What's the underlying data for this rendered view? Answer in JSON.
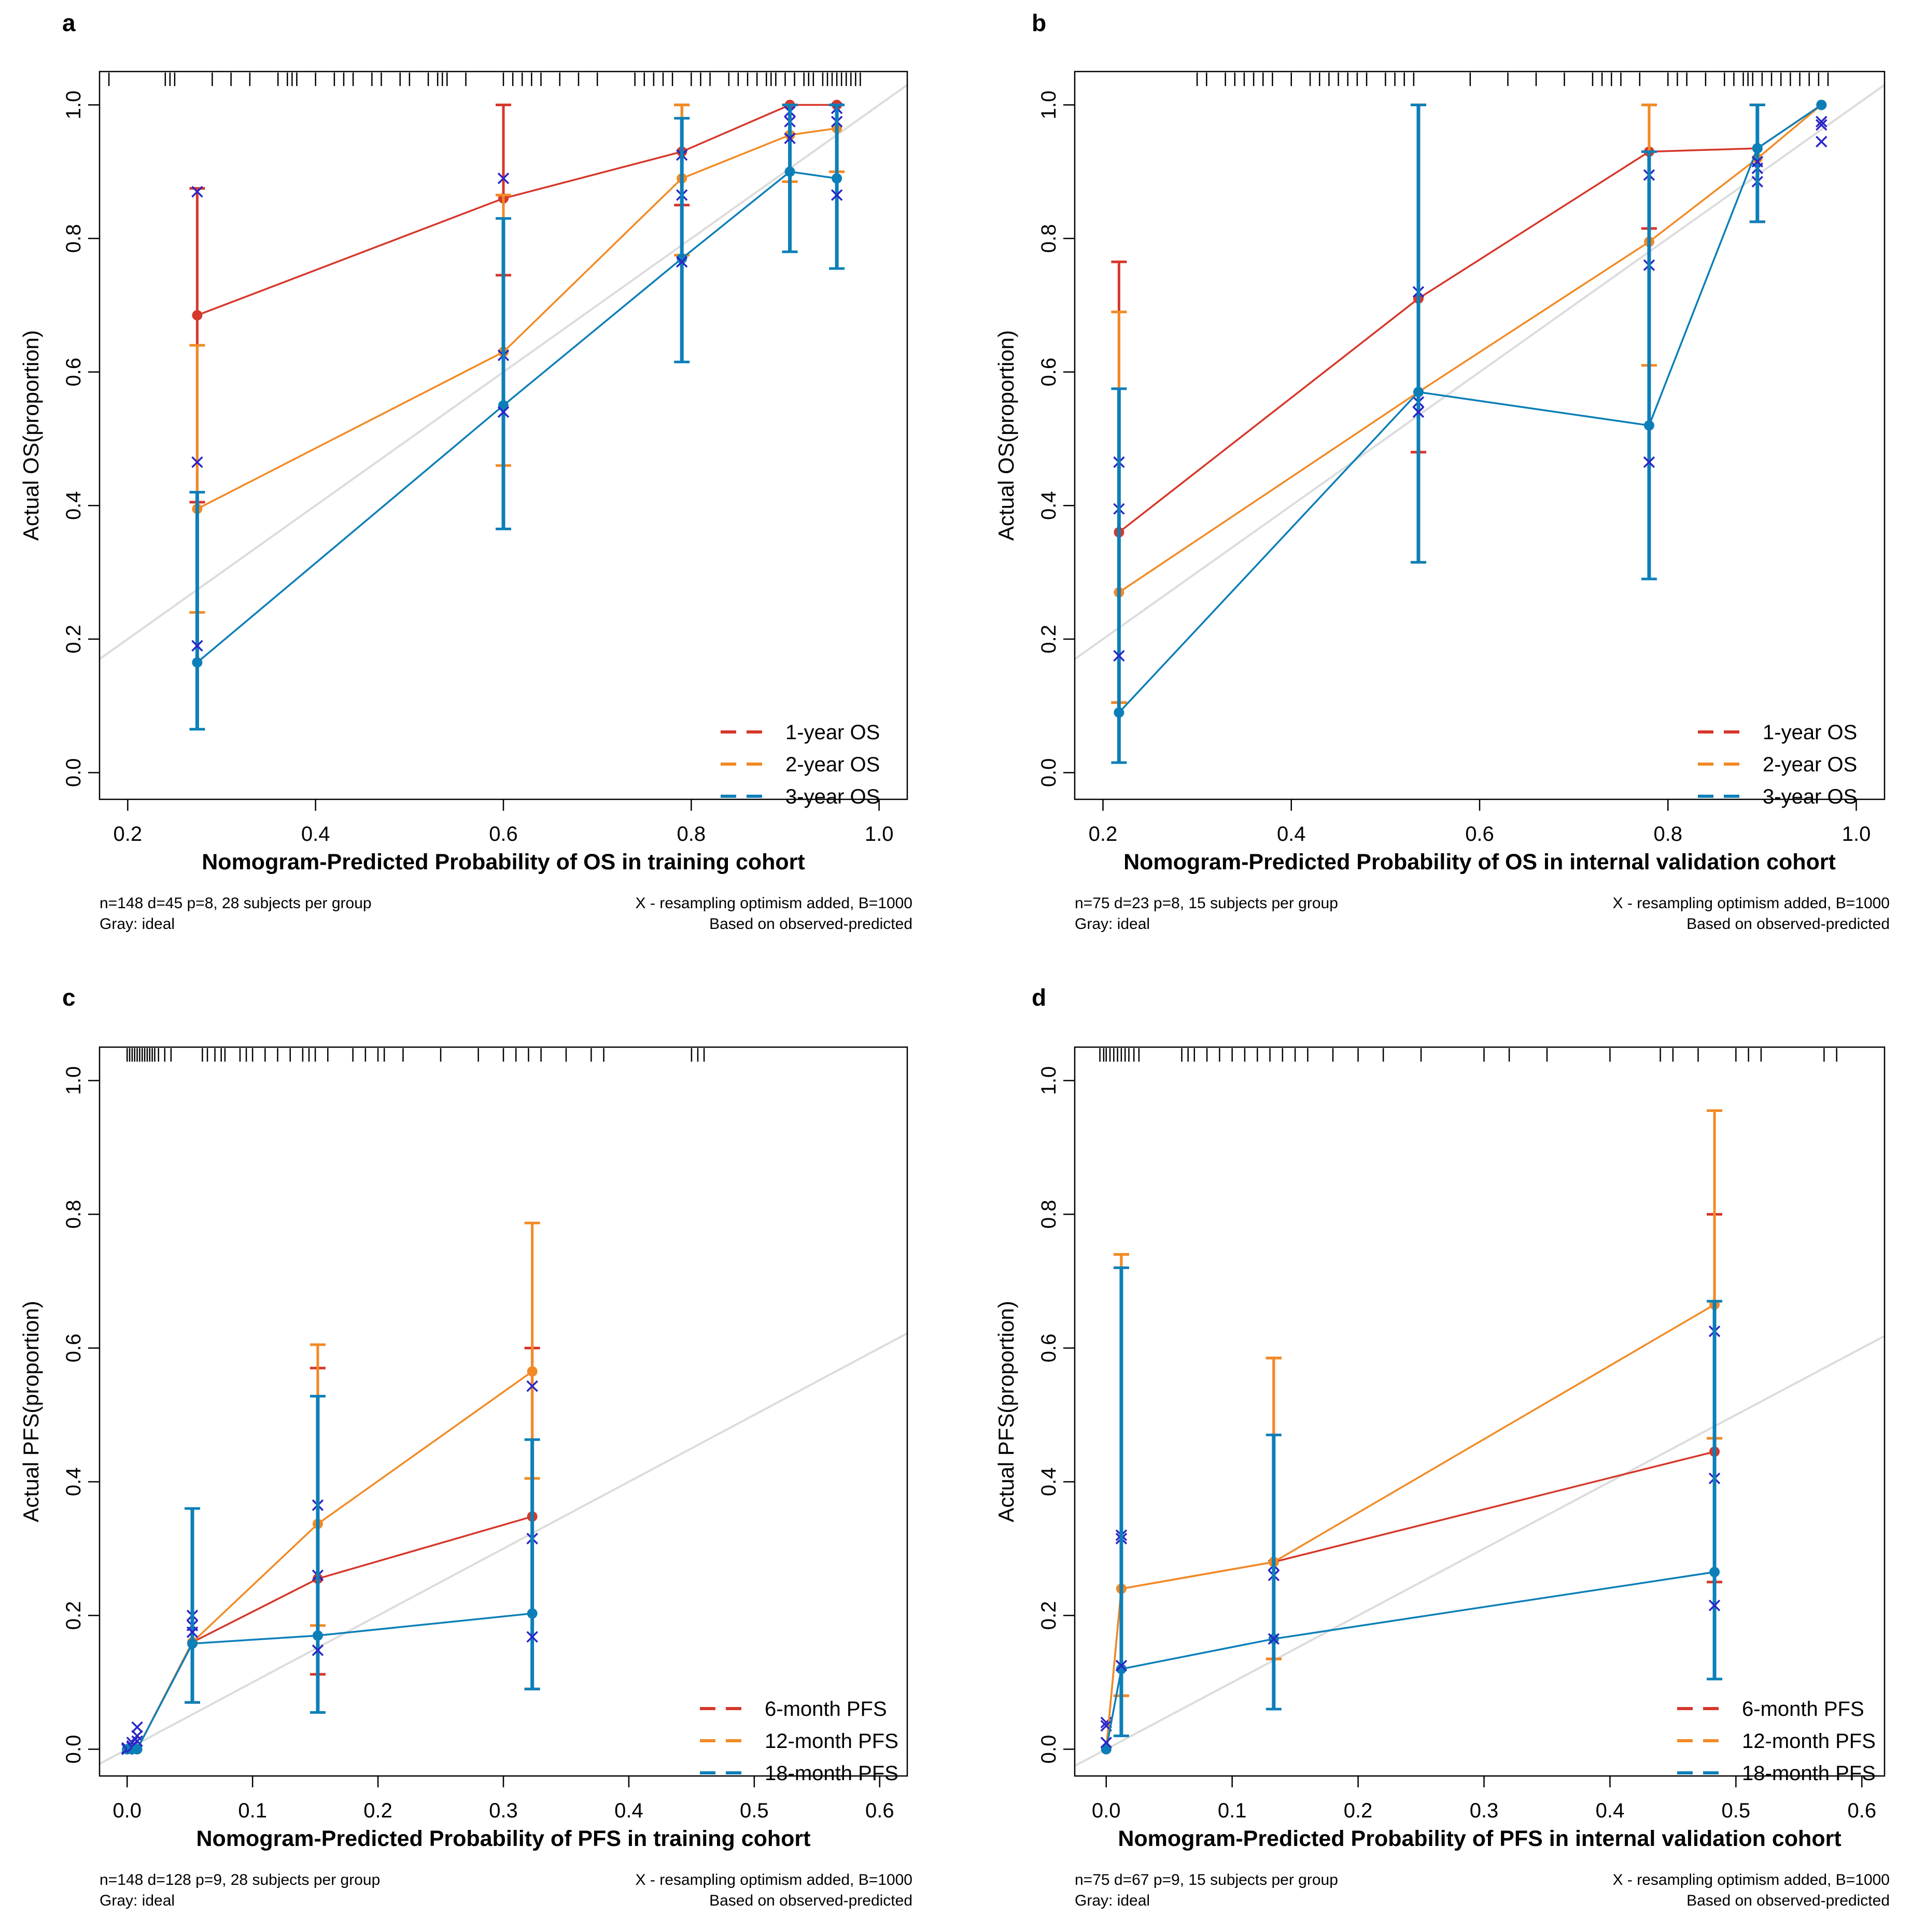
{
  "colors": {
    "red": "#D6372B",
    "orange": "#F28A24",
    "blue": "#0C7FB8",
    "cross": "#2A26C7",
    "ideal": "#DCDCDC",
    "axis": "#000000"
  },
  "chart_data": [
    {
      "panel": "a",
      "type": "line",
      "title": "",
      "xlabel": "Nomogram-Predicted Probability of OS in training cohort",
      "ylabel": "Actual OS(proportion)",
      "xlim": [
        0.17,
        1.03
      ],
      "ylim": [
        -0.04,
        1.05
      ],
      "xticks": [
        0.2,
        0.4,
        0.6,
        0.8,
        1.0
      ],
      "xtick_labels": [
        "0.2",
        "0.4",
        "0.6",
        "0.8",
        "1.0"
      ],
      "yticks": [
        0.0,
        0.2,
        0.4,
        0.6,
        0.8,
        1.0
      ],
      "ytick_labels": [
        "0.0",
        "0.2",
        "0.4",
        "0.6",
        "0.8",
        "1.0"
      ],
      "legend": [
        "1-year OS",
        "2-year OS",
        "3-year OS"
      ],
      "legend_position": "bottom-right",
      "footnote_left": [
        "n=148 d=45 p=8, 28 subjects per group",
        "Gray: ideal"
      ],
      "footnote_right": [
        "X - resampling optimism added, B=1000",
        "Based on observed-predicted"
      ],
      "rug": [
        0.18,
        0.24,
        0.245,
        0.25,
        0.29,
        0.31,
        0.33,
        0.36,
        0.37,
        0.375,
        0.38,
        0.4,
        0.42,
        0.43,
        0.44,
        0.46,
        0.47,
        0.49,
        0.5,
        0.52,
        0.53,
        0.535,
        0.54,
        0.56,
        0.6,
        0.61,
        0.62,
        0.63,
        0.64,
        0.66,
        0.68,
        0.7,
        0.74,
        0.75,
        0.76,
        0.77,
        0.78,
        0.8,
        0.81,
        0.82,
        0.84,
        0.85,
        0.86,
        0.87,
        0.88,
        0.885,
        0.89,
        0.9,
        0.91,
        0.92,
        0.925,
        0.93,
        0.94,
        0.945,
        0.95,
        0.955,
        0.96,
        0.965,
        0.97,
        0.975,
        0.98
      ],
      "series": [
        {
          "name": "1-year OS",
          "color": "red",
          "x": [
            0.274,
            0.6,
            0.79,
            0.905,
            0.955
          ],
          "y": [
            0.685,
            0.86,
            0.93,
            1.0,
            1.0
          ],
          "lower": [
            0.405,
            0.745,
            0.85,
            0.885,
            1.0
          ],
          "upper": [
            0.875,
            1.0,
            1.0,
            1.0,
            1.0
          ],
          "xcross": [
            0.87,
            0.89,
            0.925,
            0.99,
            0.995
          ]
        },
        {
          "name": "2-year OS",
          "color": "orange",
          "x": [
            0.274,
            0.6,
            0.79,
            0.905,
            0.955
          ],
          "y": [
            0.395,
            0.63,
            0.89,
            0.955,
            0.965
          ],
          "lower": [
            0.24,
            0.46,
            0.775,
            0.885,
            0.9
          ],
          "upper": [
            0.64,
            0.865,
            1.0,
            1.0,
            1.0
          ],
          "xcross": [
            0.465,
            0.625,
            0.865,
            0.975,
            0.975
          ]
        },
        {
          "name": "3-year OS",
          "color": "blue",
          "x": [
            0.274,
            0.6,
            0.79,
            0.905,
            0.955
          ],
          "y": [
            0.165,
            0.55,
            0.77,
            0.9,
            0.89
          ],
          "lower": [
            0.065,
            0.365,
            0.615,
            0.78,
            0.755
          ],
          "upper": [
            0.42,
            0.83,
            0.98,
            1.0,
            1.0
          ],
          "xcross": [
            0.19,
            0.54,
            0.765,
            0.95,
            0.865
          ]
        }
      ]
    },
    {
      "panel": "b",
      "type": "line",
      "title": "",
      "xlabel": "Nomogram-Predicted Probability of OS in internal validation cohort",
      "ylabel": "Actual OS(proportion)",
      "xlim": [
        0.17,
        1.03
      ],
      "ylim": [
        -0.04,
        1.05
      ],
      "xticks": [
        0.2,
        0.4,
        0.6,
        0.8,
        1.0
      ],
      "xtick_labels": [
        "0.2",
        "0.4",
        "0.6",
        "0.8",
        "1.0"
      ],
      "yticks": [
        0.0,
        0.2,
        0.4,
        0.6,
        0.8,
        1.0
      ],
      "ytick_labels": [
        "0.0",
        "0.2",
        "0.4",
        "0.6",
        "0.8",
        "1.0"
      ],
      "legend": [
        "1-year OS",
        "2-year OS",
        "3-year OS"
      ],
      "legend_position": "bottom-right",
      "footnote_left": [
        "n=75 d=23 p=8, 15 subjects per group",
        "Gray: ideal"
      ],
      "footnote_right": [
        "X - resampling optimism added, B=1000",
        "Based on observed-predicted"
      ],
      "rug": [
        0.3,
        0.31,
        0.33,
        0.34,
        0.35,
        0.36,
        0.37,
        0.38,
        0.4,
        0.42,
        0.43,
        0.44,
        0.45,
        0.46,
        0.47,
        0.48,
        0.5,
        0.51,
        0.52,
        0.53,
        0.59,
        0.63,
        0.66,
        0.69,
        0.72,
        0.73,
        0.74,
        0.75,
        0.77,
        0.8,
        0.81,
        0.82,
        0.84,
        0.86,
        0.87,
        0.88,
        0.885,
        0.89,
        0.9,
        0.91,
        0.92,
        0.93,
        0.94,
        0.95,
        0.96,
        0.97
      ],
      "series": [
        {
          "name": "1-year OS",
          "color": "red",
          "x": [
            0.217,
            0.535,
            0.78,
            0.895,
            0.963
          ],
          "y": [
            0.36,
            0.71,
            0.93,
            0.935,
            1.0
          ],
          "lower": [
            0.105,
            0.48,
            0.815,
            0.825,
            1.0
          ],
          "upper": [
            0.765,
            1.0,
            1.0,
            1.0,
            1.0
          ],
          "xcross": [
            0.395,
            0.72,
            0.895,
            0.905,
            0.97
          ]
        },
        {
          "name": "2-year OS",
          "color": "orange",
          "x": [
            0.217,
            0.535,
            0.78,
            0.895,
            0.963
          ],
          "y": [
            0.27,
            0.57,
            0.795,
            0.92,
            1.0
          ],
          "lower": [
            0.105,
            0.315,
            0.61,
            0.825,
            1.0
          ],
          "upper": [
            0.69,
            1.0,
            1.0,
            1.0,
            1.0
          ],
          "xcross": [
            0.465,
            0.555,
            0.76,
            0.885,
            0.945
          ]
        },
        {
          "name": "3-year OS",
          "color": "blue",
          "x": [
            0.217,
            0.535,
            0.78,
            0.895,
            0.963
          ],
          "y": [
            0.09,
            0.57,
            0.52,
            0.935,
            1.0
          ],
          "lower": [
            0.015,
            0.315,
            0.29,
            0.825,
            1.0
          ],
          "upper": [
            0.575,
            1.0,
            0.93,
            1.0,
            1.0
          ],
          "xcross": [
            0.175,
            0.54,
            0.465,
            0.915,
            0.975
          ]
        }
      ]
    },
    {
      "panel": "c",
      "type": "line",
      "title": "",
      "xlabel": "Nomogram-Predicted Probability of PFS in training cohort",
      "ylabel": "Actual PFS(proportion)",
      "xlim": [
        -0.022,
        0.622
      ],
      "ylim": [
        -0.04,
        1.05
      ],
      "xticks": [
        0.0,
        0.1,
        0.2,
        0.3,
        0.4,
        0.5,
        0.6
      ],
      "xtick_labels": [
        "0.0",
        "0.1",
        "0.2",
        "0.3",
        "0.4",
        "0.5",
        "0.6"
      ],
      "yticks": [
        0.0,
        0.2,
        0.4,
        0.6,
        0.8,
        1.0
      ],
      "ytick_labels": [
        "0.0",
        "0.2",
        "0.4",
        "0.6",
        "0.8",
        "1.0"
      ],
      "legend": [
        "6-month PFS",
        "12-month PFS",
        "18-month PFS"
      ],
      "legend_position": "bottom-right",
      "footnote_left": [
        "n=148 d=128 p=9, 28 subjects per group",
        "Gray: ideal"
      ],
      "footnote_right": [
        "X - resampling optimism added, B=1000",
        "Based on observed-predicted"
      ],
      "rug": [
        0.0,
        0.002,
        0.004,
        0.006,
        0.008,
        0.01,
        0.012,
        0.014,
        0.016,
        0.018,
        0.02,
        0.022,
        0.025,
        0.03,
        0.035,
        0.06,
        0.064,
        0.07,
        0.075,
        0.078,
        0.09,
        0.095,
        0.1,
        0.11,
        0.12,
        0.13,
        0.14,
        0.145,
        0.15,
        0.16,
        0.18,
        0.19,
        0.2,
        0.205,
        0.22,
        0.25,
        0.28,
        0.3,
        0.31,
        0.32,
        0.33,
        0.35,
        0.37,
        0.38,
        0.45,
        0.455,
        0.46
      ],
      "series": [
        {
          "name": "6-month PFS",
          "color": "red",
          "x": [
            0.0,
            0.004,
            0.008,
            0.052,
            0.152,
            0.323
          ],
          "y": [
            0.0,
            0.0,
            0.0,
            0.16,
            0.255,
            0.348
          ],
          "lower": [
            0.0,
            0.0,
            0.0,
            0.07,
            0.112,
            0.09
          ],
          "upper": [
            0.0,
            0.0,
            0.0,
            0.36,
            0.57,
            0.6
          ],
          "xcross": [
            0.0,
            0.005,
            0.02,
            0.185,
            0.26,
            0.315
          ]
        },
        {
          "name": "12-month PFS",
          "color": "orange",
          "x": [
            0.0,
            0.004,
            0.008,
            0.052,
            0.152,
            0.323
          ],
          "y": [
            0.0,
            0.0,
            0.0,
            0.16,
            0.337,
            0.565
          ],
          "lower": [
            0.0,
            0.0,
            0.0,
            0.07,
            0.185,
            0.405
          ],
          "upper": [
            0.0,
            0.0,
            0.0,
            0.36,
            0.605,
            0.787
          ],
          "xcross": [
            0.002,
            0.01,
            0.033,
            0.2,
            0.365,
            0.543
          ]
        },
        {
          "name": "18-month PFS",
          "color": "blue",
          "x": [
            0.0,
            0.004,
            0.008,
            0.052,
            0.152,
            0.323
          ],
          "y": [
            0.0,
            0.0,
            0.0,
            0.158,
            0.17,
            0.203
          ],
          "lower": [
            0.0,
            0.0,
            0.0,
            0.07,
            0.055,
            0.09
          ],
          "upper": [
            0.0,
            0.0,
            0.0,
            0.36,
            0.528,
            0.463
          ],
          "xcross": [
            0.0,
            0.003,
            0.012,
            0.175,
            0.148,
            0.168
          ]
        }
      ]
    },
    {
      "panel": "d",
      "type": "line",
      "title": "",
      "xlabel": "Nomogram-Predicted Probability of PFS in internal validation cohort",
      "ylabel": "Actual PFS(proportion)",
      "xlim": [
        -0.025,
        0.618
      ],
      "ylim": [
        -0.04,
        1.05
      ],
      "xticks": [
        0.0,
        0.1,
        0.2,
        0.3,
        0.4,
        0.5,
        0.6
      ],
      "xtick_labels": [
        "0.0",
        "0.1",
        "0.2",
        "0.3",
        "0.4",
        "0.5",
        "0.6"
      ],
      "yticks": [
        0.0,
        0.2,
        0.4,
        0.6,
        0.8,
        1.0
      ],
      "ytick_labels": [
        "0.0",
        "0.2",
        "0.4",
        "0.6",
        "0.8",
        "1.0"
      ],
      "legend": [
        "6-month PFS",
        "12-month PFS",
        "18-month PFS"
      ],
      "legend_position": "bottom-right",
      "footnote_left": [
        "n=75 d=67 p=9, 15 subjects per group",
        "Gray: ideal"
      ],
      "footnote_right": [
        "X - resampling optimism added, B=1000",
        "Based on observed-predicted"
      ],
      "rug": [
        -0.005,
        -0.002,
        0.0,
        0.003,
        0.006,
        0.009,
        0.012,
        0.015,
        0.018,
        0.022,
        0.026,
        0.06,
        0.065,
        0.07,
        0.08,
        0.09,
        0.1,
        0.11,
        0.12,
        0.13,
        0.14,
        0.15,
        0.16,
        0.18,
        0.2,
        0.22,
        0.25,
        0.3,
        0.32,
        0.35,
        0.4,
        0.44,
        0.45,
        0.47,
        0.5,
        0.51,
        0.52,
        0.57,
        0.58
      ],
      "series": [
        {
          "name": "6-month PFS",
          "color": "red",
          "x": [
            0.0,
            0.012,
            0.133,
            0.483
          ],
          "y": [
            0.0,
            0.24,
            0.28,
            0.445
          ],
          "lower": [
            0.0,
            0.08,
            0.135,
            0.25
          ],
          "upper": [
            0.0,
            0.74,
            0.585,
            0.8
          ],
          "xcross": [
            0.04,
            0.32,
            0.275,
            0.405
          ]
        },
        {
          "name": "12-month PFS",
          "color": "orange",
          "x": [
            0.0,
            0.012,
            0.133,
            0.483
          ],
          "y": [
            0.0,
            0.24,
            0.28,
            0.665
          ],
          "lower": [
            0.0,
            0.08,
            0.135,
            0.465
          ],
          "upper": [
            0.0,
            0.74,
            0.585,
            0.955
          ],
          "xcross": [
            0.035,
            0.315,
            0.26,
            0.625
          ]
        },
        {
          "name": "18-month PFS",
          "color": "blue",
          "x": [
            0.0,
            0.012,
            0.133,
            0.483
          ],
          "y": [
            0.0,
            0.12,
            0.165,
            0.265
          ],
          "lower": [
            0.0,
            0.02,
            0.06,
            0.105
          ],
          "upper": [
            0.0,
            0.72,
            0.47,
            0.67
          ],
          "xcross": [
            0.01,
            0.125,
            0.165,
            0.215
          ]
        }
      ]
    }
  ]
}
